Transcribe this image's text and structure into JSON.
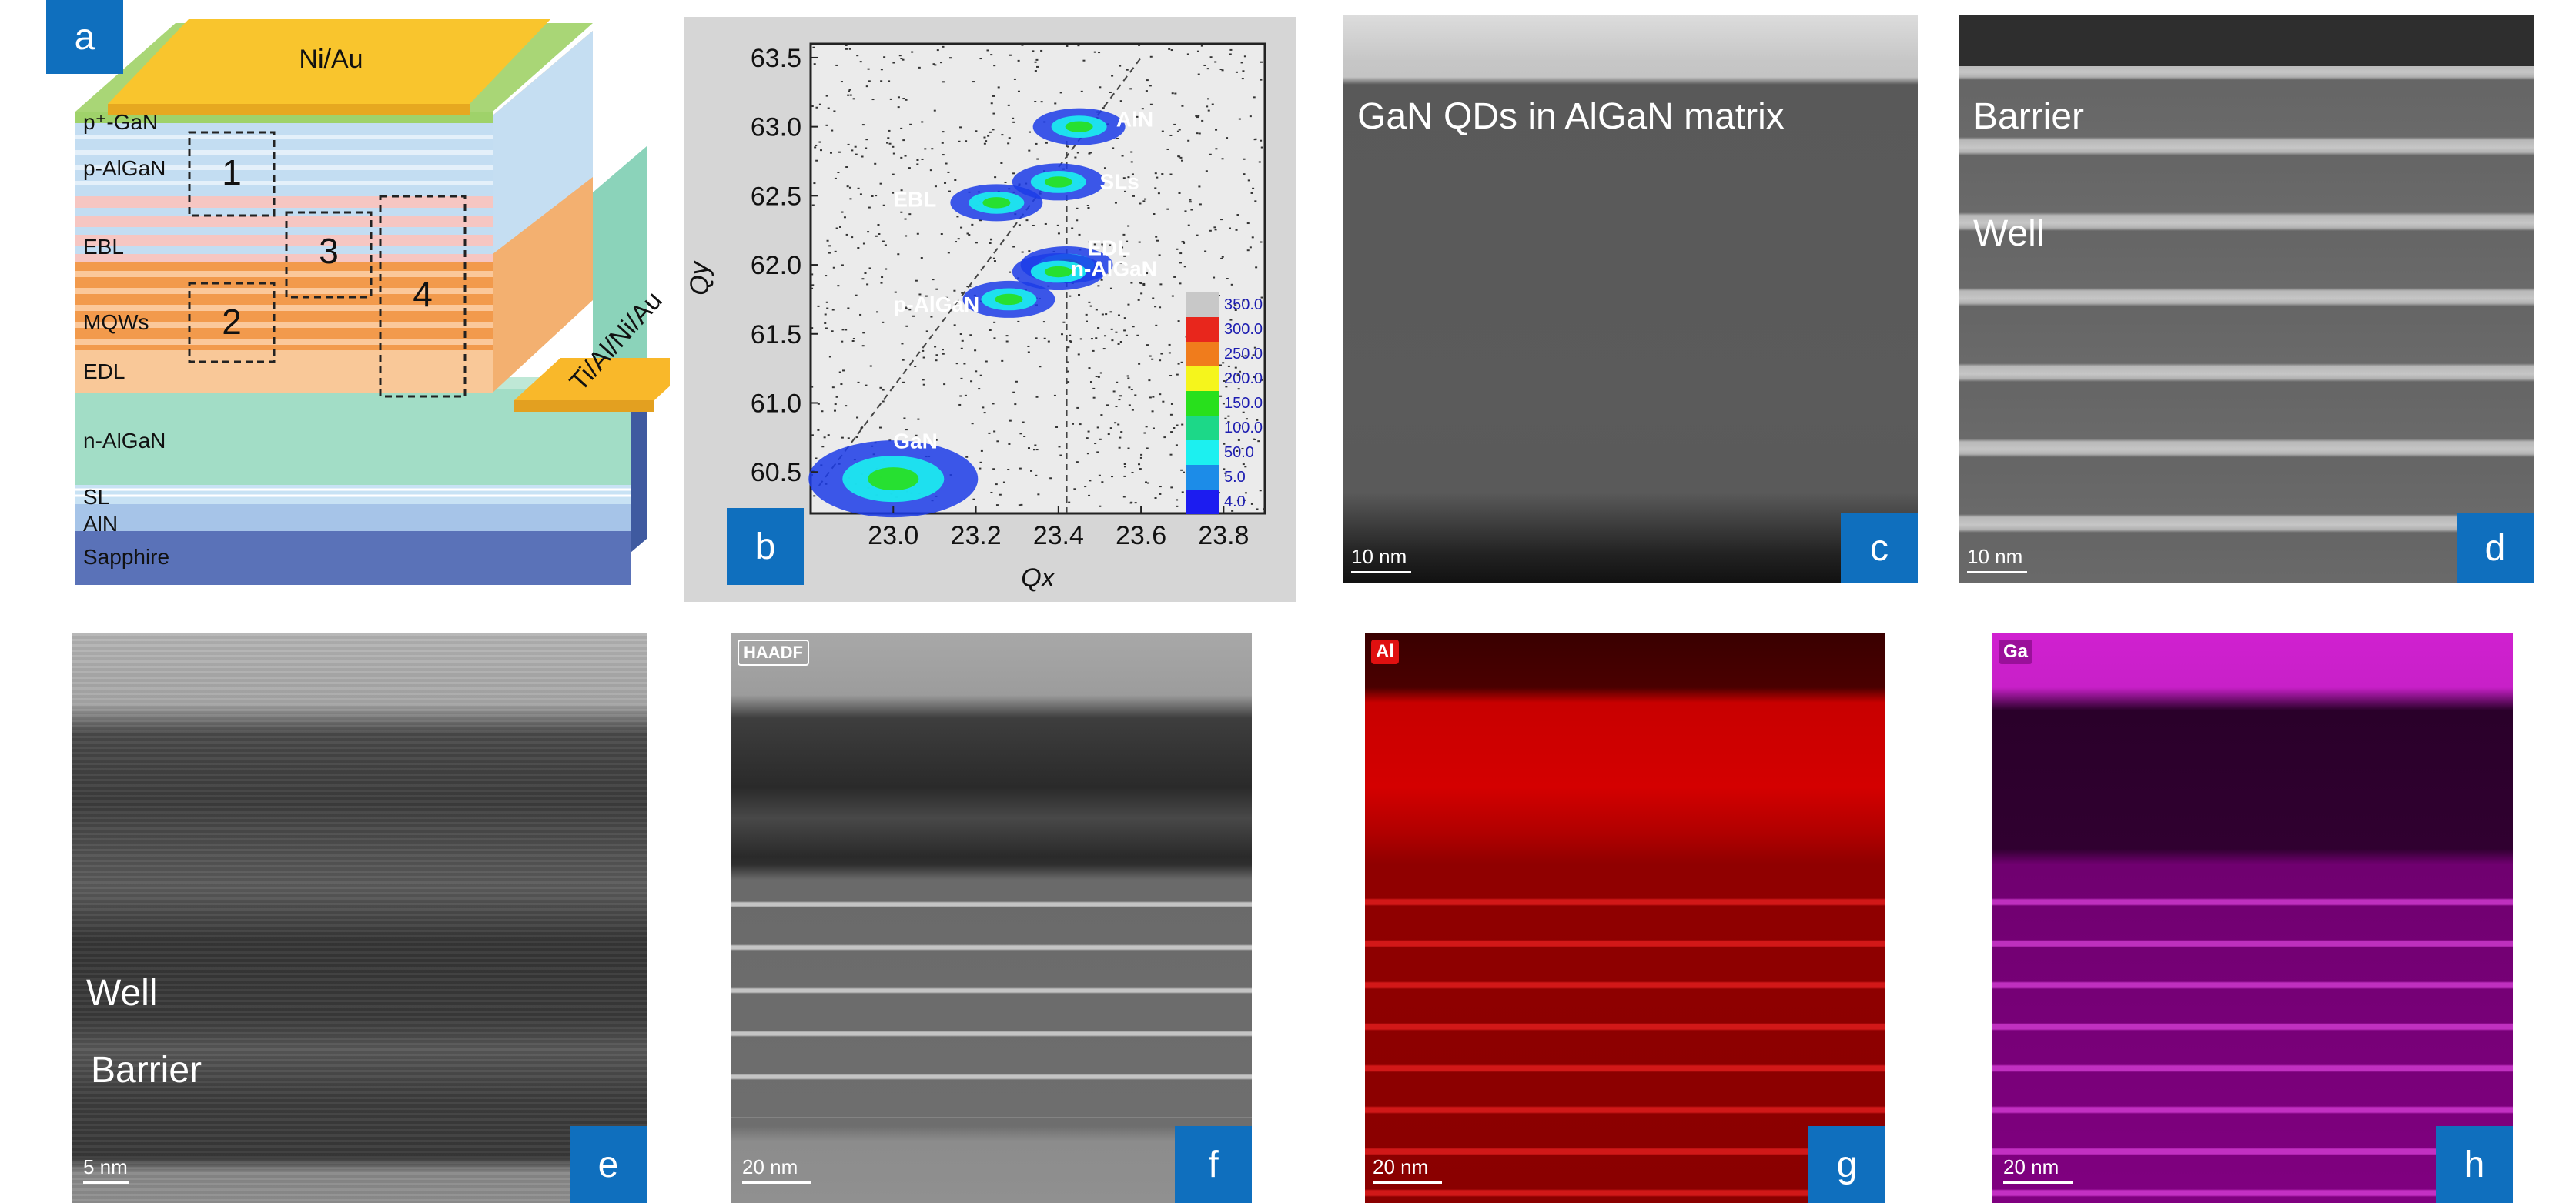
{
  "panels": {
    "a": {
      "tag": "a",
      "contact_top": "Ni/Au",
      "contact_side": "Ti/Al/Ni/Au",
      "layers": [
        "p⁺-GaN",
        "p-AlGaN",
        "EBL",
        "MQWs",
        "EDL",
        "n-AlGaN",
        "SL",
        "AlN",
        "Sapphire"
      ],
      "boxes": [
        "1",
        "2",
        "3",
        "4"
      ]
    },
    "b": {
      "tag": "b",
      "chart_data": {
        "type": "heatmap",
        "xlabel": "Qx",
        "ylabel": "Qy",
        "xlim": [
          22.8,
          23.9
        ],
        "ylim": [
          60.2,
          63.6
        ],
        "xticks": [
          "23.0",
          "23.2",
          "23.4",
          "23.6",
          "23.8"
        ],
        "yticks": [
          "60.5",
          "61.0",
          "61.5",
          "62.0",
          "62.5",
          "63.0",
          "63.5"
        ],
        "peaks": [
          {
            "name": "AlN",
            "x": 23.45,
            "y": 63.0
          },
          {
            "name": "SLs",
            "x": 23.4,
            "y": 62.6
          },
          {
            "name": "EBL",
            "x": 23.25,
            "y": 62.45
          },
          {
            "name": "EDL",
            "x": 23.42,
            "y": 62.0
          },
          {
            "name": "n-AlGaN",
            "x": 23.4,
            "y": 61.95
          },
          {
            "name": "p-AlGaN",
            "x": 23.28,
            "y": 61.75
          },
          {
            "name": "GaN",
            "x": 23.0,
            "y": 60.45
          }
        ],
        "colorbar": [
          "350.0",
          "300.0",
          "250.0",
          "200.0",
          "150.0",
          "100.0",
          "50.0",
          "5.0",
          "4.0"
        ],
        "colorbar_colors": [
          "#c8c8c8",
          "#e8261c",
          "#f07c1c",
          "#f5f51c",
          "#28e01c",
          "#1cd888",
          "#1cf0f0",
          "#1c8ce8",
          "#1c1cf0"
        ]
      }
    },
    "c": {
      "tag": "c",
      "title": "GaN QDs in AlGaN matrix",
      "scale": "10 nm"
    },
    "d": {
      "tag": "d",
      "label1": "Barrier",
      "label2": "Well",
      "scale": "10 nm"
    },
    "e": {
      "tag": "e",
      "label1": "Well",
      "label2": "Barrier",
      "scale": "5 nm"
    },
    "f": {
      "tag": "f",
      "chip": "HAADF",
      "scale": "20 nm"
    },
    "g": {
      "tag": "g",
      "chip": "Al",
      "scale": "20 nm"
    },
    "h": {
      "tag": "h",
      "chip": "Ga",
      "scale": "20 nm"
    }
  }
}
